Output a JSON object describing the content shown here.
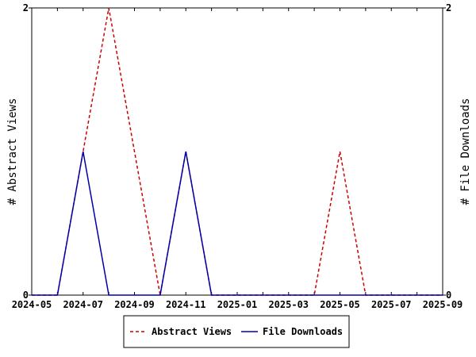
{
  "chart_data": {
    "type": "line",
    "x": [
      "2024-05",
      "2024-06",
      "2024-07",
      "2024-08",
      "2024-09",
      "2024-10",
      "2024-11",
      "2024-12",
      "2025-01",
      "2025-02",
      "2025-03",
      "2025-04",
      "2025-05",
      "2025-06",
      "2025-07",
      "2025-08",
      "2025-09"
    ],
    "x_tick_labels": [
      "2024-05",
      "2024-07",
      "2024-09",
      "2024-11",
      "2025-01",
      "2025-03",
      "2025-05",
      "2025-07",
      "2025-09"
    ],
    "y_left_label": "# Abstract Views",
    "y_right_label": "# File Downloads",
    "y_left_ticks": [
      "0",
      "2"
    ],
    "y_right_ticks": [
      "0",
      "2"
    ],
    "ylim_left": [
      0,
      2
    ],
    "ylim_right": [
      0,
      2
    ],
    "grid": false,
    "legend_position": "bottom",
    "series": [
      {
        "name": "Abstract Views",
        "axis": "left",
        "color": "#cc0000",
        "style": "dashed",
        "values": [
          0,
          0,
          1,
          2,
          1,
          0,
          1,
          0,
          0,
          0,
          0,
          0,
          1,
          0,
          0,
          0,
          0
        ]
      },
      {
        "name": "File Downloads",
        "axis": "right",
        "color": "#0000aa",
        "style": "solid",
        "values": [
          0,
          0,
          1,
          0,
          0,
          0,
          1,
          0,
          0,
          0,
          0,
          0,
          0,
          0,
          0,
          0,
          0
        ]
      }
    ]
  }
}
